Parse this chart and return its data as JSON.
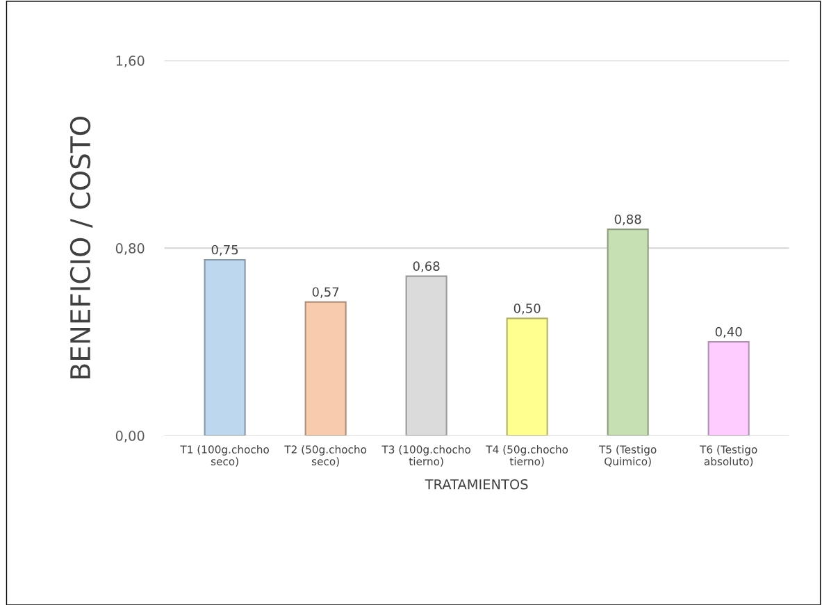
{
  "chart_data": {
    "type": "bar",
    "xlabel": "TRATAMIENTOS",
    "ylabel": "BENEFICIO / COSTO",
    "categories": [
      "T1 (100g.chocho\nseco)",
      "T2 (50g.chocho\nseco)",
      "T3 (100g.chocho\ntierno)",
      "T4 (50g.chocho\ntierno)",
      "T5 (Testigo\nQuimico)",
      "T6 (Testigo\nabsoluto)"
    ],
    "values": [
      0.75,
      0.57,
      0.68,
      0.5,
      0.88,
      0.4
    ],
    "value_labels": [
      "0,75",
      "0,57",
      "0,68",
      "0,50",
      "0,88",
      "0,40"
    ],
    "colors": [
      "#bdd7ee",
      "#f8cbad",
      "#dbdbdb",
      "#ffff8f",
      "#c6e0b4",
      "#ffccff"
    ],
    "ylim": [
      0,
      1.6
    ],
    "yticks": [
      {
        "value": 0,
        "label": "0,00"
      },
      {
        "value": 0.8,
        "label": "0,80"
      },
      {
        "value": 1.6,
        "label": "1,60"
      }
    ],
    "grid": "y",
    "legend": false
  }
}
